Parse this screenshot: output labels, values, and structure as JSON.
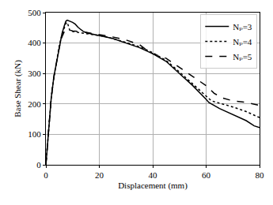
{
  "chart_data": {
    "type": "line",
    "x_label": "Displacement (mm)",
    "y_label": "Base Shear (kN)",
    "xlim": [
      0,
      80
    ],
    "xticks": [
      0,
      20,
      40,
      60,
      80
    ],
    "ylim": [
      0,
      500
    ],
    "yticks": [
      0,
      100,
      200,
      300,
      400,
      500
    ],
    "grid": true,
    "legend": "upper right",
    "series": [
      {
        "name": "Nₚ=3",
        "color": "#000000",
        "line_style": "solid",
        "x": [
          0,
          1,
          2,
          3,
          4,
          5,
          6,
          7,
          7.5,
          8,
          9,
          10,
          11,
          12,
          13,
          14,
          16,
          20,
          25,
          30,
          35,
          40,
          45,
          50,
          55,
          60,
          61,
          65,
          70,
          75,
          78,
          80
        ],
        "values": [
          0,
          120,
          220,
          290,
          340,
          390,
          430,
          460,
          472,
          475,
          472,
          468,
          462,
          452,
          445,
          438,
          432,
          425,
          415,
          400,
          385,
          365,
          340,
          300,
          260,
          215,
          205,
          185,
          165,
          145,
          128,
          122
        ]
      },
      {
        "name": "Nₚ=4",
        "color": "#000000",
        "line_style": "dot",
        "x": [
          0,
          1,
          2,
          3,
          4,
          5,
          6,
          7,
          7.5,
          8,
          9,
          12,
          16,
          22,
          30,
          35,
          40,
          45,
          50,
          55,
          60,
          62,
          66,
          70,
          75,
          80
        ],
        "values": [
          0,
          120,
          220,
          290,
          340,
          390,
          428,
          455,
          465,
          468,
          440,
          435,
          430,
          422,
          402,
          388,
          368,
          343,
          305,
          265,
          225,
          210,
          200,
          190,
          175,
          155
        ]
      },
      {
        "name": "Nₚ=5",
        "color": "#000000",
        "line_style": "dash",
        "x": [
          0,
          1,
          2,
          3,
          4,
          5,
          6,
          7,
          8,
          10,
          15,
          20,
          25,
          30,
          35,
          38,
          40,
          45,
          50,
          55,
          60,
          63,
          66,
          70,
          75,
          80
        ],
        "values": [
          0,
          120,
          220,
          290,
          340,
          385,
          420,
          440,
          445,
          440,
          435,
          428,
          420,
          410,
          395,
          375,
          365,
          350,
          320,
          290,
          260,
          235,
          220,
          210,
          205,
          195
        ]
      }
    ]
  }
}
